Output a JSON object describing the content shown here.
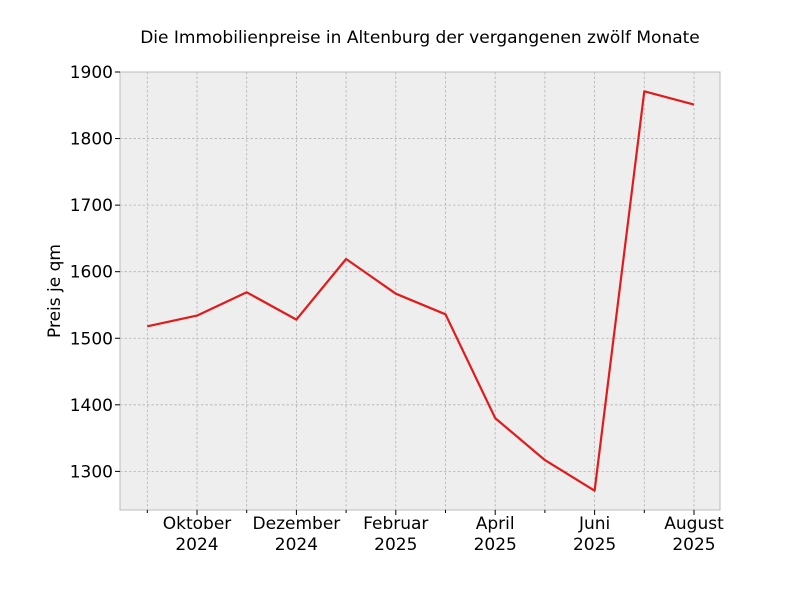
{
  "chart_data": {
    "type": "line",
    "title": "Die Immobilienpreise in Altenburg der vergangenen zwölf Monate",
    "xlabel": "",
    "ylabel": "Preis je qm",
    "x": [
      "2024-09",
      "2024-10",
      "2024-11",
      "2024-12",
      "2025-01",
      "2025-02",
      "2025-03",
      "2025-04",
      "2025-05",
      "2025-06",
      "2025-07",
      "2025-08"
    ],
    "series": [
      {
        "values": [
          1518,
          1534,
          1569,
          1528,
          1619,
          1567,
          1536,
          1380,
          1317,
          1271,
          1871,
          1851
        ],
        "color": "#e31a1c"
      }
    ],
    "ylim": [
      1242,
      1900
    ],
    "yticks": [
      1300,
      1400,
      1500,
      1600,
      1700,
      1800,
      1900
    ],
    "xtick_labels": [
      {
        "index": 1,
        "line1": "Oktober",
        "line2": "2024"
      },
      {
        "index": 3,
        "line1": "Dezember",
        "line2": "2024"
      },
      {
        "index": 5,
        "line1": "Februar",
        "line2": "2025"
      },
      {
        "index": 7,
        "line1": "April",
        "line2": "2025"
      },
      {
        "index": 9,
        "line1": "Juni",
        "line2": "2025"
      },
      {
        "index": 11,
        "line1": "August",
        "line2": "2025"
      }
    ],
    "grid": true,
    "background": "#eeeeee"
  }
}
